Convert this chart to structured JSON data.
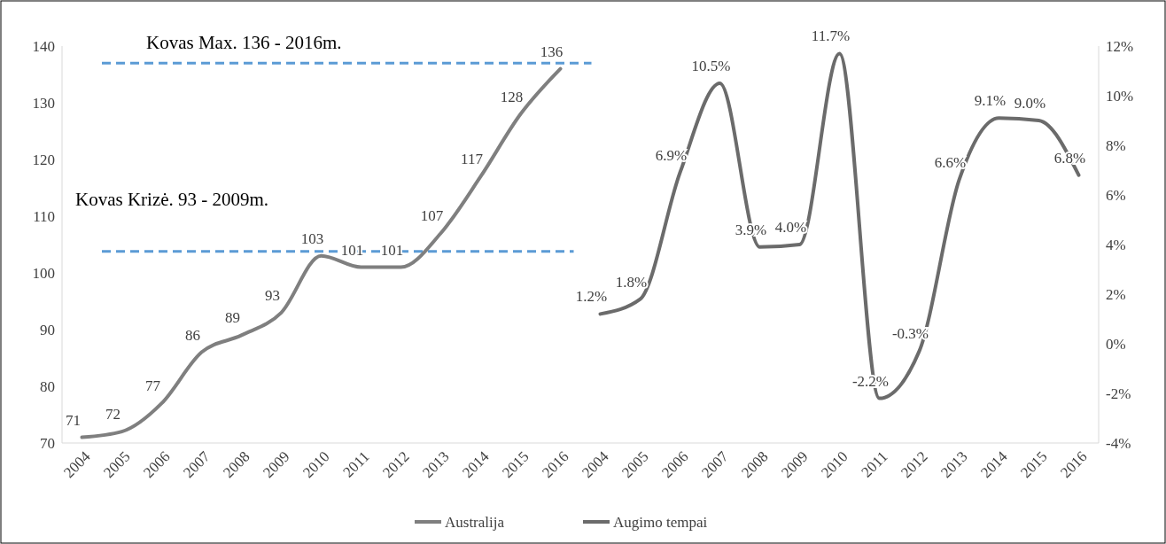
{
  "chart_data": {
    "type": "line",
    "categories": [
      "2004",
      "2005",
      "2006",
      "2007",
      "2008",
      "2009",
      "2010",
      "2011",
      "2012",
      "2013",
      "2014",
      "2015",
      "2016",
      "2004",
      "2005",
      "2006",
      "2007",
      "2008",
      "2009",
      "2010",
      "2011",
      "2012",
      "2013",
      "2014",
      "2015",
      "2016"
    ],
    "series": [
      {
        "name": "Australija",
        "color": "#7f7f7f",
        "values": [
          71,
          72,
          77,
          86,
          89,
          93,
          103,
          101,
          101,
          107,
          117,
          128,
          136,
          null,
          null,
          null,
          null,
          null,
          null,
          null,
          null,
          null,
          null,
          null,
          null,
          null
        ],
        "value_labels": [
          "71",
          "72",
          "77",
          "86",
          "89",
          "93",
          "103",
          "101",
          "101",
          "107",
          "117",
          "128",
          "136",
          null,
          null,
          null,
          null,
          null,
          null,
          null,
          null,
          null,
          null,
          null,
          null,
          null
        ]
      },
      {
        "name": "Augimo tempai",
        "color": "#6b6b6b",
        "axis": "y2",
        "values": [
          null,
          null,
          null,
          null,
          null,
          null,
          null,
          null,
          null,
          null,
          null,
          null,
          null,
          1.2,
          1.8,
          6.9,
          10.5,
          3.9,
          4.0,
          11.7,
          -2.2,
          -0.3,
          6.6,
          9.1,
          9.0,
          6.8
        ],
        "value_labels": [
          null,
          null,
          null,
          null,
          null,
          null,
          null,
          null,
          null,
          null,
          null,
          null,
          null,
          "1.2%",
          "1.8%",
          "6.9%",
          "10.5%",
          "3.9%",
          "4.0%",
          "11.7%",
          "-2.2%",
          "-0.3%",
          "6.6%",
          "9.1%",
          "9.0%",
          "6.8%"
        ]
      }
    ],
    "ylim": [
      70,
      140
    ],
    "yticks": [
      70,
      80,
      90,
      100,
      110,
      120,
      130,
      140
    ],
    "y2lim": [
      -4,
      12
    ],
    "y2ticks": [
      {
        "value": -4,
        "label": "-4%"
      },
      {
        "value": -2,
        "label": "-2%"
      },
      {
        "value": 0,
        "label": "0%"
      },
      {
        "value": 2,
        "label": "2%"
      },
      {
        "value": 4,
        "label": "4%"
      },
      {
        "value": 6,
        "label": "6%"
      },
      {
        "value": 8,
        "label": "8%"
      },
      {
        "value": 10,
        "label": "10%"
      },
      {
        "value": 12,
        "label": "12%"
      }
    ],
    "ref_lines": [
      {
        "axis": "y",
        "value": 137,
        "label": "Kovas Max. 136 - 2016m.",
        "color": "#5b9bd5",
        "line_style": "dashed"
      },
      {
        "axis": "y",
        "value": 103.8,
        "label": "Kovas Krizė. 93 - 2009m.",
        "color": "#5b9bd5",
        "line_style": "dashed"
      }
    ],
    "legend": "bottom",
    "line_style": "solid",
    "grid": false
  }
}
